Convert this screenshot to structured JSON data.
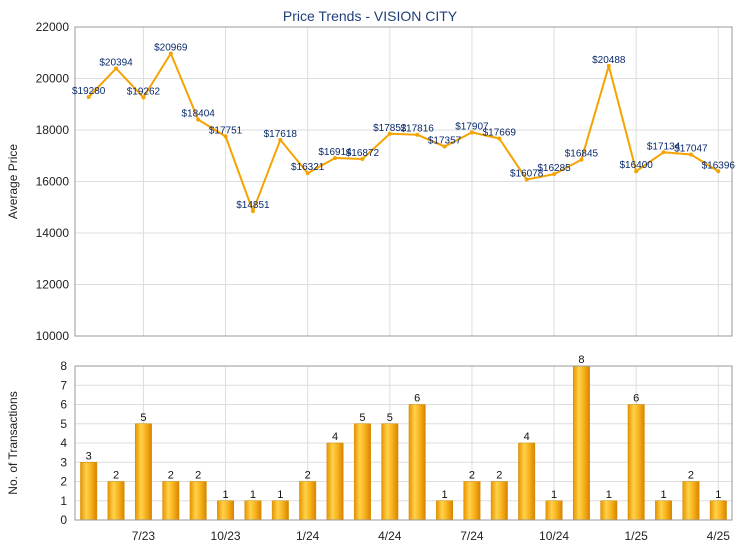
{
  "chart_data": [
    {
      "type": "line",
      "title": "Price Trends - VISION CITY",
      "ylabel": "Average Price",
      "ylim": [
        10000,
        22000
      ],
      "yticks": [
        10000,
        12000,
        14000,
        16000,
        18000,
        20000,
        22000
      ],
      "grid": true,
      "color": "#f5a300",
      "series": [
        {
          "values": [
            19280,
            20394,
            19262,
            20969,
            18404,
            17751,
            14851,
            17618,
            16321,
            16914,
            16872,
            17852,
            17816,
            17357,
            17907,
            17669,
            16078,
            16285,
            16845,
            20488,
            16400,
            17134,
            17047,
            16396
          ]
        }
      ],
      "labels": [
        "$19280",
        "$20394",
        "$19262",
        "$20969",
        "$18404",
        "$17751",
        "$14851",
        "$17618",
        "$16321",
        "$16914",
        "$16872",
        "$17852",
        "$17816",
        "$17357",
        "$17907",
        "$17669",
        "$16078",
        "$16285",
        "$16845",
        "$20488",
        "$16400",
        "$17134",
        "$17047",
        "$16396"
      ]
    },
    {
      "type": "bar",
      "ylabel": "No. of Transactions",
      "ylim": [
        0,
        8
      ],
      "yticks": [
        0,
        1,
        2,
        3,
        4,
        5,
        6,
        7,
        8
      ],
      "grid": true,
      "color": "#f5a300",
      "values": [
        3,
        2,
        5,
        2,
        2,
        1,
        1,
        1,
        2,
        4,
        5,
        5,
        6,
        1,
        2,
        2,
        4,
        1,
        8,
        1,
        6,
        1,
        2,
        1
      ],
      "xticks": [
        {
          "label": "7/23",
          "index": 2
        },
        {
          "label": "10/23",
          "index": 5
        },
        {
          "label": "1/24",
          "index": 8
        },
        {
          "label": "4/24",
          "index": 11
        },
        {
          "label": "7/24",
          "index": 14
        },
        {
          "label": "10/24",
          "index": 17
        },
        {
          "label": "1/25",
          "index": 20
        },
        {
          "label": "4/25",
          "index": 23
        }
      ]
    }
  ]
}
